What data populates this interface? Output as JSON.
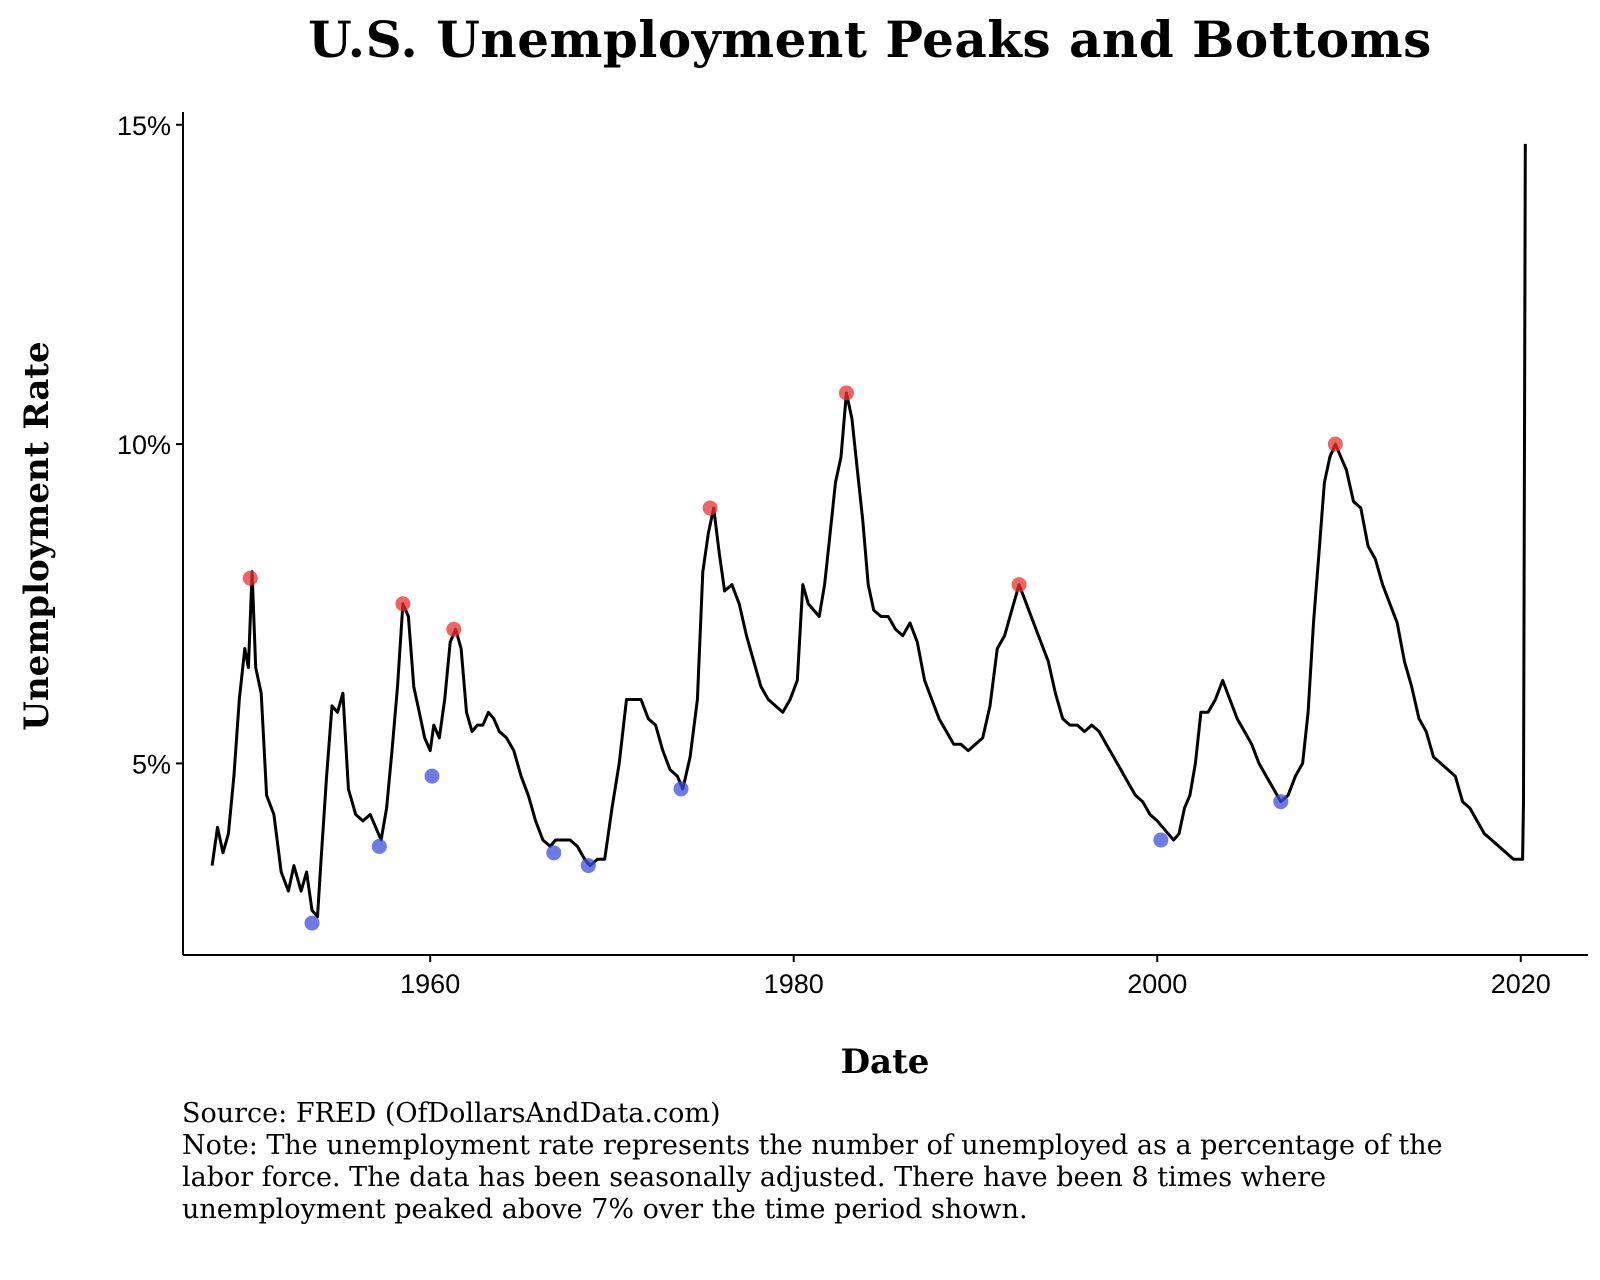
{
  "chart_data": {
    "type": "line",
    "title": "U.S. Unemployment Peaks and Bottoms",
    "xlabel": "Date",
    "ylabel": "Unemployment Rate",
    "xlim": [
      1946.4,
      2023.7
    ],
    "ylim": [
      2.0,
      15.2
    ],
    "x_ticks": [
      {
        "value": 1960,
        "label": "1960"
      },
      {
        "value": 1980,
        "label": "1980"
      },
      {
        "value": 2000,
        "label": "2000"
      },
      {
        "value": 2020,
        "label": "2020"
      }
    ],
    "y_ticks": [
      {
        "value": 5,
        "label": "5%"
      },
      {
        "value": 10,
        "label": "10%"
      },
      {
        "value": 15,
        "label": "15%"
      }
    ],
    "series": [
      {
        "name": "Unemployment Rate",
        "color": "#000000",
        "x": [
          1948.0,
          1948.3,
          1948.6,
          1948.9,
          1949.2,
          1949.5,
          1949.8,
          1950.0,
          1950.2,
          1950.4,
          1950.7,
          1951.0,
          1951.4,
          1951.8,
          1952.2,
          1952.5,
          1952.9,
          1953.2,
          1953.5,
          1953.8,
          1954.0,
          1954.3,
          1954.6,
          1954.9,
          1955.2,
          1955.5,
          1955.9,
          1956.3,
          1956.7,
          1957.0,
          1957.3,
          1957.6,
          1957.9,
          1958.2,
          1958.5,
          1958.8,
          1959.1,
          1959.4,
          1959.7,
          1960.0,
          1960.2,
          1960.5,
          1960.8,
          1961.1,
          1961.4,
          1961.7,
          1962.0,
          1962.3,
          1962.6,
          1962.9,
          1963.2,
          1963.5,
          1963.8,
          1964.2,
          1964.6,
          1965.0,
          1965.4,
          1965.8,
          1966.2,
          1966.6,
          1966.9,
          1967.3,
          1967.7,
          1968.1,
          1968.5,
          1968.8,
          1969.2,
          1969.6,
          1970.0,
          1970.4,
          1970.8,
          1971.2,
          1971.6,
          1972.0,
          1972.4,
          1972.8,
          1973.2,
          1973.6,
          1973.9,
          1974.3,
          1974.7,
          1975.0,
          1975.3,
          1975.6,
          1975.9,
          1976.2,
          1976.6,
          1977.0,
          1977.4,
          1977.8,
          1978.2,
          1978.6,
          1979.0,
          1979.4,
          1979.8,
          1980.2,
          1980.5,
          1980.8,
          1981.1,
          1981.4,
          1981.7,
          1982.0,
          1982.3,
          1982.6,
          1982.9,
          1983.2,
          1983.5,
          1983.8,
          1984.1,
          1984.4,
          1984.8,
          1985.2,
          1985.6,
          1986.0,
          1986.4,
          1986.8,
          1987.2,
          1987.6,
          1988.0,
          1988.4,
          1988.8,
          1989.2,
          1989.6,
          1990.0,
          1990.4,
          1990.8,
          1991.2,
          1991.6,
          1992.0,
          1992.4,
          1992.8,
          1993.2,
          1993.6,
          1994.0,
          1994.4,
          1994.8,
          1995.2,
          1995.6,
          1996.0,
          1996.4,
          1996.8,
          1997.2,
          1997.6,
          1998.0,
          1998.4,
          1998.8,
          1999.2,
          1999.6,
          2000.0,
          2000.3,
          2000.6,
          2000.9,
          2001.2,
          2001.5,
          2001.8,
          2002.1,
          2002.4,
          2002.8,
          2003.2,
          2003.6,
          2004.0,
          2004.4,
          2004.8,
          2005.2,
          2005.6,
          2006.0,
          2006.4,
          2006.8,
          2007.2,
          2007.6,
          2008.0,
          2008.3,
          2008.6,
          2008.9,
          2009.2,
          2009.5,
          2009.8,
          2010.1,
          2010.4,
          2010.8,
          2011.2,
          2011.6,
          2012.0,
          2012.4,
          2012.8,
          2013.2,
          2013.6,
          2014.0,
          2014.4,
          2014.8,
          2015.2,
          2015.6,
          2016.0,
          2016.4,
          2016.8,
          2017.2,
          2017.6,
          2018.0,
          2018.4,
          2018.8,
          2019.2,
          2019.6,
          2019.9,
          2020.1,
          2020.15,
          2020.25
        ],
        "values": [
          3.4,
          4.0,
          3.6,
          3.9,
          4.8,
          6.0,
          6.8,
          6.5,
          8.0,
          6.5,
          6.1,
          4.5,
          4.2,
          3.3,
          3.0,
          3.4,
          3.0,
          3.3,
          2.7,
          2.6,
          3.5,
          4.8,
          5.9,
          5.8,
          6.1,
          4.6,
          4.2,
          4.1,
          4.2,
          4.0,
          3.8,
          4.3,
          5.2,
          6.2,
          7.5,
          7.3,
          6.2,
          5.8,
          5.4,
          5.2,
          5.6,
          5.4,
          6.0,
          6.9,
          7.1,
          6.8,
          5.8,
          5.5,
          5.6,
          5.6,
          5.8,
          5.7,
          5.5,
          5.4,
          5.2,
          4.8,
          4.5,
          4.1,
          3.8,
          3.7,
          3.8,
          3.8,
          3.8,
          3.7,
          3.5,
          3.4,
          3.5,
          3.5,
          4.3,
          5.0,
          6.0,
          6.0,
          6.0,
          5.7,
          5.6,
          5.2,
          4.9,
          4.8,
          4.6,
          5.1,
          6.0,
          8.0,
          8.6,
          9.0,
          8.3,
          7.7,
          7.8,
          7.5,
          7.0,
          6.6,
          6.2,
          6.0,
          5.9,
          5.8,
          6.0,
          6.3,
          7.8,
          7.5,
          7.4,
          7.3,
          7.8,
          8.6,
          9.4,
          9.8,
          10.8,
          10.4,
          9.6,
          8.8,
          7.8,
          7.4,
          7.3,
          7.3,
          7.1,
          7.0,
          7.2,
          6.9,
          6.3,
          6.0,
          5.7,
          5.5,
          5.3,
          5.3,
          5.2,
          5.3,
          5.4,
          5.9,
          6.8,
          7.0,
          7.4,
          7.8,
          7.5,
          7.2,
          6.9,
          6.6,
          6.1,
          5.7,
          5.6,
          5.6,
          5.5,
          5.6,
          5.5,
          5.3,
          5.1,
          4.9,
          4.7,
          4.5,
          4.4,
          4.2,
          4.1,
          4.0,
          3.9,
          3.8,
          3.9,
          4.3,
          4.5,
          5.0,
          5.8,
          5.8,
          6.0,
          6.3,
          6.0,
          5.7,
          5.5,
          5.3,
          5.0,
          4.8,
          4.6,
          4.4,
          4.5,
          4.8,
          5.0,
          5.8,
          7.2,
          8.3,
          9.4,
          9.8,
          10.0,
          9.8,
          9.6,
          9.1,
          9.0,
          8.4,
          8.2,
          7.8,
          7.5,
          7.2,
          6.6,
          6.2,
          5.7,
          5.5,
          5.1,
          5.0,
          4.9,
          4.8,
          4.4,
          4.3,
          4.1,
          3.9,
          3.8,
          3.7,
          3.6,
          3.5,
          3.5,
          3.5,
          4.4,
          14.7
        ]
      }
    ],
    "peaks": {
      "color": "#e8312d",
      "points": [
        [
          1950.1,
          7.9
        ],
        [
          1958.5,
          7.5
        ],
        [
          1961.3,
          7.1
        ],
        [
          1975.4,
          9.0
        ],
        [
          1982.9,
          10.8
        ],
        [
          1992.4,
          7.8
        ],
        [
          2009.8,
          10.0
        ]
      ]
    },
    "bottoms": {
      "color": "#3b4fe0",
      "points": [
        [
          1953.5,
          2.5
        ],
        [
          1957.2,
          3.7
        ],
        [
          1960.1,
          4.8
        ],
        [
          1966.8,
          3.6
        ],
        [
          1968.7,
          3.4
        ],
        [
          1973.8,
          4.6
        ],
        [
          2000.2,
          3.8
        ],
        [
          2006.8,
          4.4
        ]
      ]
    }
  },
  "caption": {
    "source": "Source:  FRED (OfDollarsAndData.com)",
    "note": "Note: The unemployment rate represents the number of unemployed as a percentage of the labor force. The data has been seasonally adjusted. There have been 8 times where unemployment peaked above 7% over the time period shown."
  }
}
